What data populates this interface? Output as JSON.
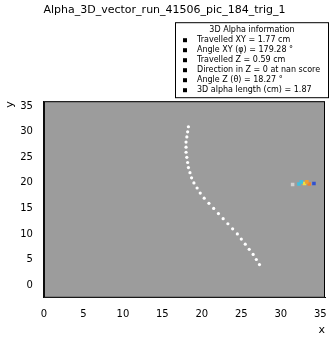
{
  "chart_data": {
    "type": "scatter",
    "title": "Alpha_3D_vector_run_41506_pic_184_trig_1",
    "x_label": "x",
    "y_label": "y",
    "xlim": [
      0,
      35.6
    ],
    "ylim": [
      -2.5,
      36
    ],
    "xticks": [
      0,
      5,
      10,
      15,
      20,
      25,
      30,
      35
    ],
    "yticks": [
      0,
      5,
      10,
      15,
      20,
      25,
      30,
      35
    ],
    "grid": false,
    "series": [
      {
        "color": "#ffffff",
        "marker": "circle",
        "x": [
          27.3,
          26.9,
          26.5,
          26.0,
          25.5,
          25.0,
          24.5,
          23.9,
          23.3,
          22.7,
          22.1,
          21.5,
          20.9,
          20.3,
          19.8,
          19.4,
          19.0,
          18.7,
          18.5,
          18.3,
          18.2,
          18.1,
          18.0,
          18.0,
          18.0,
          18.1,
          18.2,
          18.3
        ],
        "values": [
          4,
          5,
          6,
          7,
          8,
          9,
          10,
          11,
          12,
          13,
          14,
          15,
          16,
          17,
          18,
          19,
          20,
          21,
          22,
          23,
          24,
          25,
          26,
          27,
          28,
          29,
          30,
          31
        ]
      },
      {
        "colors": [
          "#d0d0d0",
          "#40c0e0",
          "#f0e040",
          "#f08030",
          "#3050d0",
          "#40c0e0",
          "#f0a030"
        ],
        "marker": "square",
        "x": [
          31.5,
          32.3,
          33.0,
          33.6,
          34.2,
          32.6,
          33.3
        ],
        "values": [
          19.7,
          19.8,
          19.9,
          19.8,
          19.9,
          20.2,
          20.2
        ]
      }
    ],
    "annotation_box": {
      "title": "3D Alpha information",
      "lines": [
        "Travelled XY = 1.77 cm",
        "Angle XY (φ) = 179.28 °",
        "Travelled Z = 0.59 cm",
        "Direction in Z = 0 at nan score",
        "Angle Z (θ) = 18.27 °",
        "3D alpha length (cm) = 1.87"
      ]
    }
  }
}
